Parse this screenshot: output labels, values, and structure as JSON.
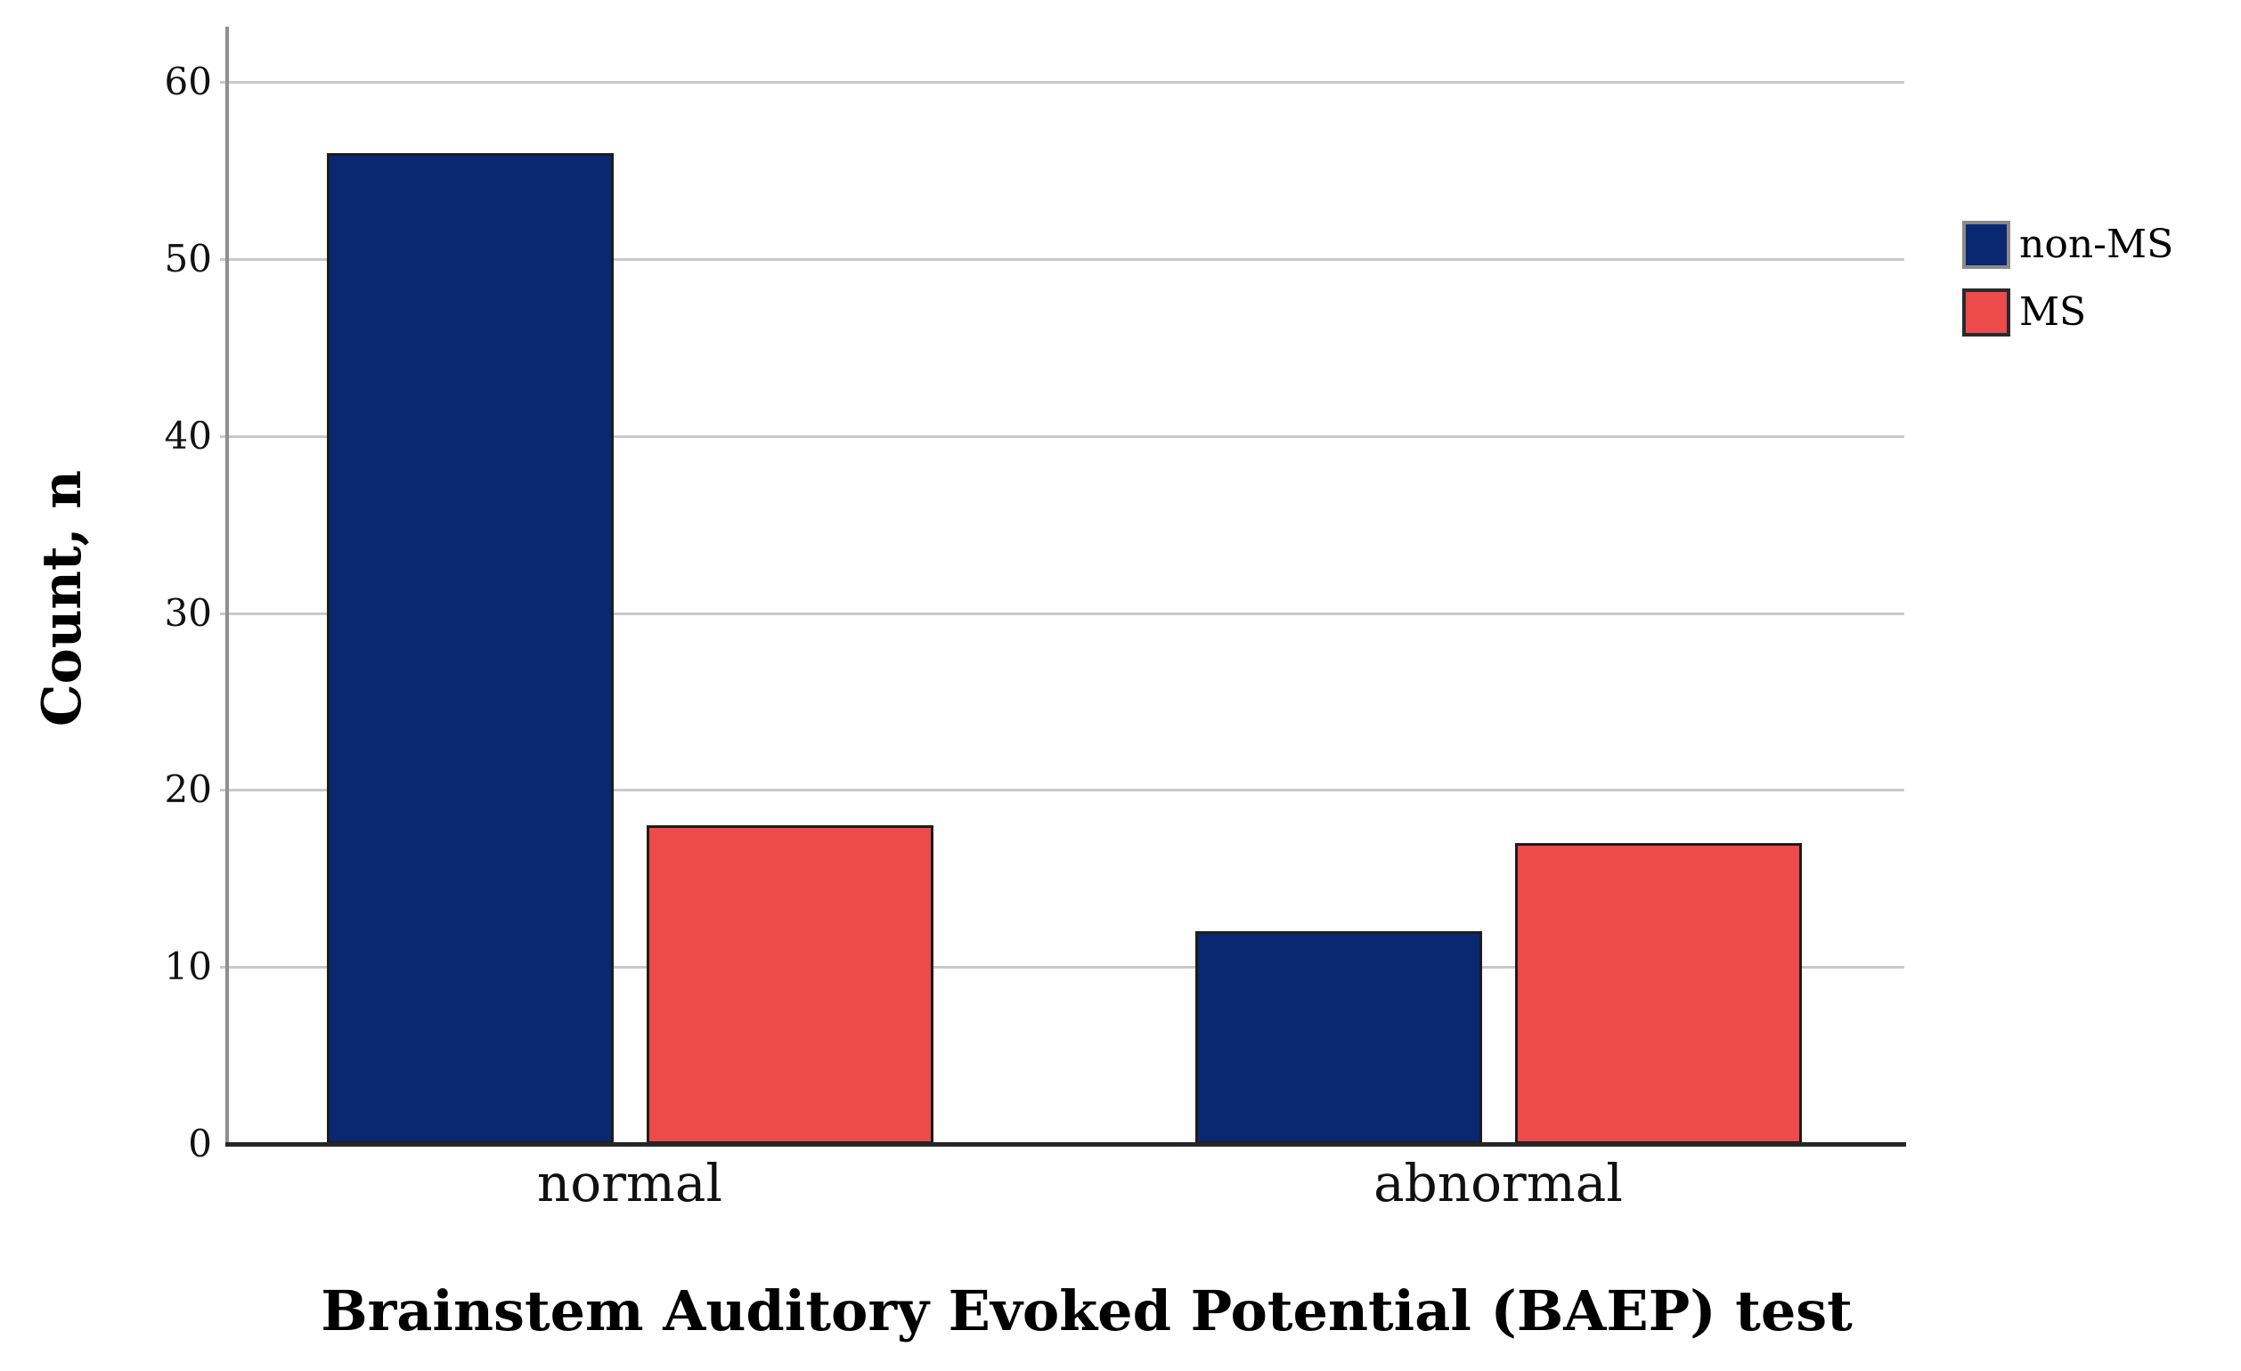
{
  "chart_data": {
    "type": "bar",
    "title": "",
    "xlabel": "Brainstem Auditory Evoked Potential (BAEP) test",
    "ylabel": "Count, n",
    "categories": [
      "normal",
      "abnormal"
    ],
    "series": [
      {
        "name": "non-MS",
        "color": "#0a2772",
        "values": [
          56,
          12
        ]
      },
      {
        "name": "MS",
        "color": "#ed4a4c",
        "values": [
          18,
          17
        ]
      }
    ],
    "yticks": [
      0,
      10,
      20,
      30,
      40,
      50,
      60
    ],
    "ylim": [
      0,
      63
    ],
    "grid": true,
    "legend_position": "right",
    "background_color": "#ffffff",
    "gridline_color": "#c9c9c9",
    "axis_line_color": "#262626"
  }
}
